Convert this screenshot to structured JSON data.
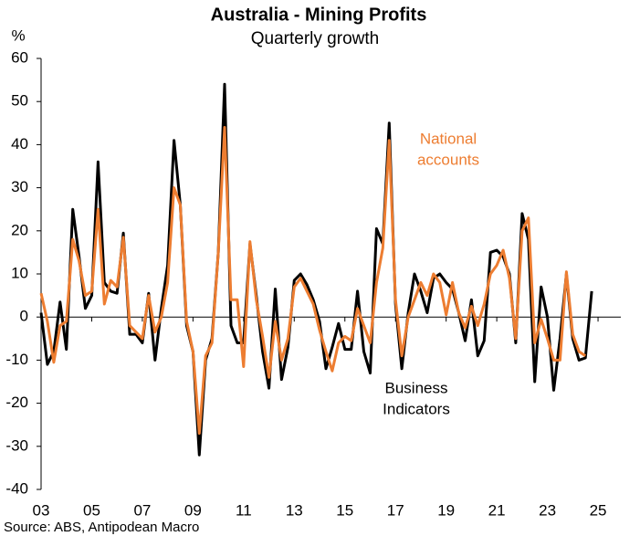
{
  "chart_data": {
    "type": "line",
    "title": "Australia - Mining Profits",
    "subtitle": "Quarterly growth",
    "y_label": "%",
    "source": "Source: ABS, Antipodean Macro",
    "x": [
      2003,
      2003.25,
      2003.5,
      2003.75,
      2004,
      2004.25,
      2004.5,
      2004.75,
      2005,
      2005.25,
      2005.5,
      2005.75,
      2006,
      2006.25,
      2006.5,
      2006.75,
      2007,
      2007.25,
      2007.5,
      2007.75,
      2008,
      2008.25,
      2008.5,
      2008.75,
      2009,
      2009.25,
      2009.5,
      2009.75,
      2010,
      2010.25,
      2010.5,
      2010.75,
      2011,
      2011.25,
      2011.5,
      2011.75,
      2012,
      2012.25,
      2012.5,
      2012.75,
      2013,
      2013.25,
      2013.5,
      2013.75,
      2014,
      2014.25,
      2014.5,
      2014.75,
      2015,
      2015.25,
      2015.5,
      2015.75,
      2016,
      2016.25,
      2016.5,
      2016.75,
      2017,
      2017.25,
      2017.5,
      2017.75,
      2018,
      2018.25,
      2018.5,
      2018.75,
      2019,
      2019.25,
      2019.5,
      2019.75,
      2020,
      2020.25,
      2020.5,
      2020.75,
      2021,
      2021.25,
      2021.5,
      2021.75,
      2022,
      2022.25,
      2022.5,
      2022.75,
      2023,
      2023.25,
      2023.5,
      2023.75,
      2024,
      2024.25,
      2024.5,
      2024.75
    ],
    "series": [
      {
        "name": "Business Indicators",
        "label_lines": [
          "Business",
          "Indicators"
        ],
        "color": "#000000",
        "values": [
          1,
          -11,
          -8,
          3.5,
          -7.5,
          25,
          14,
          2,
          5,
          36,
          8,
          6,
          5.5,
          19.5,
          -4,
          -4,
          -6,
          5.5,
          -10,
          2,
          12,
          41,
          26,
          -2,
          -8,
          -32,
          -10,
          -5,
          15,
          54,
          -2,
          -6,
          -6,
          17,
          5,
          -8,
          -16.5,
          6.5,
          -14.5,
          -7,
          8.5,
          10,
          7.5,
          4,
          -1,
          -12,
          -7,
          -1.5,
          -7.5,
          -7.5,
          6,
          -8,
          -13,
          20.5,
          17,
          45,
          3,
          -12,
          1,
          10,
          6,
          1,
          9,
          10,
          8,
          6.5,
          1,
          -5.5,
          4,
          -9,
          -5.5,
          15,
          15.5,
          14,
          10,
          -6,
          24,
          18,
          -15,
          7,
          0,
          -17,
          -5,
          10,
          -5,
          -10,
          -9.5,
          6
        ]
      },
      {
        "name": "National accounts",
        "label_lines": [
          "National",
          "accounts"
        ],
        "color": "#ed7d31",
        "values": [
          5.5,
          -1,
          -10.5,
          -2,
          -1,
          18,
          13,
          5,
          6,
          25,
          3,
          8.5,
          7,
          18.5,
          -2,
          -3.5,
          -5,
          5,
          -3.5,
          0,
          8,
          30,
          26,
          -1,
          -8,
          -27,
          -9,
          -6,
          15,
          44,
          4,
          4,
          -11.5,
          17.5,
          4,
          -4.5,
          -14,
          -1,
          -10,
          -5,
          7,
          9,
          6,
          3,
          -3,
          -8,
          -12.5,
          -6,
          -4.5,
          -5.5,
          2,
          -2,
          -6,
          8,
          16,
          41,
          4,
          -9,
          0,
          4,
          8,
          5,
          10,
          8,
          0.5,
          8,
          1,
          -2.5,
          2.5,
          -2,
          3,
          10,
          12,
          15.5,
          9,
          -5,
          20,
          23,
          -6,
          -0.5,
          -5,
          -10,
          -10,
          10.5,
          -4,
          -8,
          -9,
          null
        ]
      }
    ],
    "xlim": [
      2003,
      2025.9
    ],
    "xticks": [
      {
        "value": 2003,
        "label": "03"
      },
      {
        "value": 2005,
        "label": "05"
      },
      {
        "value": 2007,
        "label": "07"
      },
      {
        "value": 2009,
        "label": "09"
      },
      {
        "value": 2011,
        "label": "11"
      },
      {
        "value": 2013,
        "label": "13"
      },
      {
        "value": 2015,
        "label": "15"
      },
      {
        "value": 2017,
        "label": "17"
      },
      {
        "value": 2019,
        "label": "19"
      },
      {
        "value": 2021,
        "label": "21"
      },
      {
        "value": 2023,
        "label": "23"
      },
      {
        "value": 2025,
        "label": "25"
      }
    ],
    "ylim": [
      -40,
      60
    ],
    "yticks": [
      -40,
      -30,
      -20,
      -10,
      0,
      10,
      20,
      30,
      40,
      50,
      60
    ],
    "grid": false
  }
}
